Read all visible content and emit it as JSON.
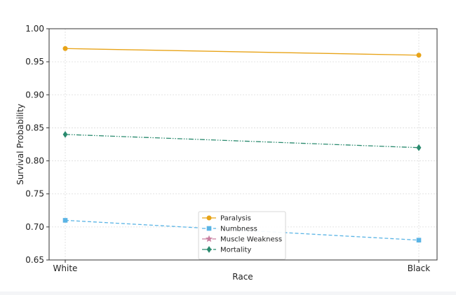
{
  "chart_data": {
    "type": "line",
    "title": "",
    "xlabel": "Race",
    "ylabel": "Survival Probability",
    "categories": [
      "White",
      "Black"
    ],
    "ylim": [
      0.65,
      1.0
    ],
    "yticks": [
      "0.65",
      "0.70",
      "0.75",
      "0.80",
      "0.85",
      "0.90",
      "0.95",
      "1.00"
    ],
    "grid": true,
    "legend_position": "bottom-center",
    "series": [
      {
        "name": "Paralysis",
        "values": [
          0.97,
          0.96
        ],
        "color": "#e8a317",
        "dash": "solid",
        "marker": "circle"
      },
      {
        "name": "Numbness",
        "values": [
          0.71,
          0.68
        ],
        "color": "#5ab4e5",
        "dash": "dashed",
        "marker": "square"
      },
      {
        "name": "Muscle Weakness",
        "values": [
          null,
          null
        ],
        "color": "#c97fa0",
        "dash": "dashdot",
        "marker": "star"
      },
      {
        "name": "Mortality",
        "values": [
          0.84,
          0.82
        ],
        "color": "#2a8a6e",
        "dash": "dashdotdot",
        "marker": "diamond"
      }
    ]
  }
}
